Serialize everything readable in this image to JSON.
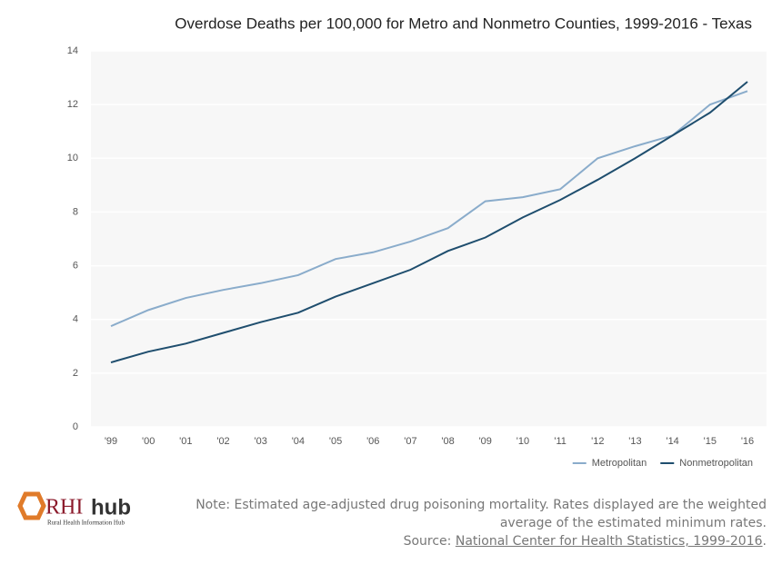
{
  "chart_data": {
    "type": "line",
    "title": "Overdose Deaths per 100,000 for Metro and Nonmetro Counties, 1999-2016 - Texas",
    "categories": [
      "'99",
      "'00",
      "'01",
      "'02",
      "'03",
      "'04",
      "'05",
      "'06",
      "'07",
      "'08",
      "'09",
      "'10",
      "'11",
      "'12",
      "'13",
      "'14",
      "'15",
      "'16"
    ],
    "series": [
      {
        "name": "Metropolitan",
        "color": "#8aaccb",
        "values": [
          3.75,
          4.35,
          4.8,
          5.1,
          5.35,
          5.65,
          6.25,
          6.5,
          6.9,
          7.4,
          8.4,
          8.55,
          8.85,
          10.0,
          10.45,
          10.85,
          12.0,
          12.5
        ]
      },
      {
        "name": "Nonmetropolitan",
        "color": "#1f4e6e",
        "values": [
          2.4,
          2.8,
          3.1,
          3.5,
          3.9,
          4.25,
          4.85,
          5.35,
          5.85,
          6.55,
          7.05,
          7.8,
          8.45,
          9.2,
          10.0,
          10.85,
          11.7,
          12.85
        ]
      }
    ],
    "ylim": [
      0,
      14
    ],
    "yticks": [
      0,
      2,
      4,
      6,
      8,
      10,
      12,
      14
    ],
    "grid": true,
    "legend": "bottom-right"
  },
  "logo": {
    "brand_a": "RHI",
    "brand_b": "hub",
    "tagline": "Rural Health Information Hub"
  },
  "note": "Note: Estimated age-adjusted drug poisoning mortality. Rates displayed are the weighted average of the estimated minimum rates.",
  "source": {
    "label": "Source:",
    "link": "National Center for Health Statistics, 1999-2016",
    "end": "."
  }
}
